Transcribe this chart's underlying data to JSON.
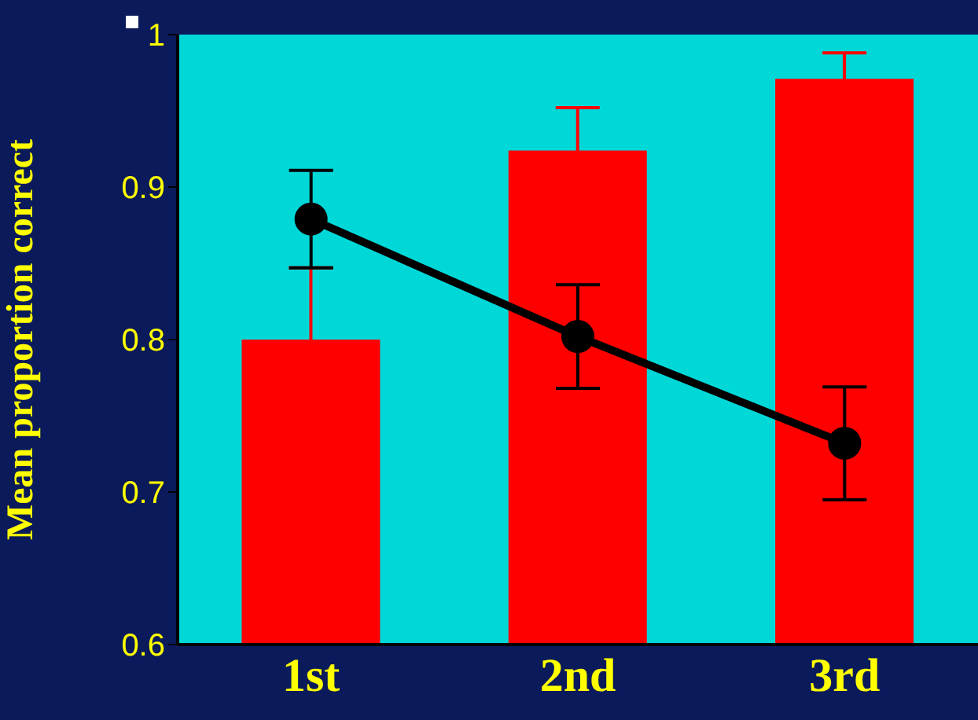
{
  "chart_data": {
    "type": "bar",
    "ylabel": "Mean proportion correct",
    "categories": [
      "1st",
      "2nd",
      "3rd"
    ],
    "series": [
      {
        "color": "#ff0000",
        "values": [
          0.8,
          0.924,
          0.971
        ],
        "errors": [
          0.047,
          0.028,
          0.017
        ]
      },
      {
        "type": "line",
        "color": "#000000",
        "values": [
          0.879,
          0.802,
          0.732
        ],
        "errors": [
          0.032,
          0.034,
          0.037
        ]
      }
    ],
    "ylim": [
      0.6,
      1
    ],
    "yticks": [
      0.6,
      0.7,
      0.8,
      0.9,
      1
    ],
    "grid": false,
    "marker": "circle",
    "line_style": "solid"
  }
}
